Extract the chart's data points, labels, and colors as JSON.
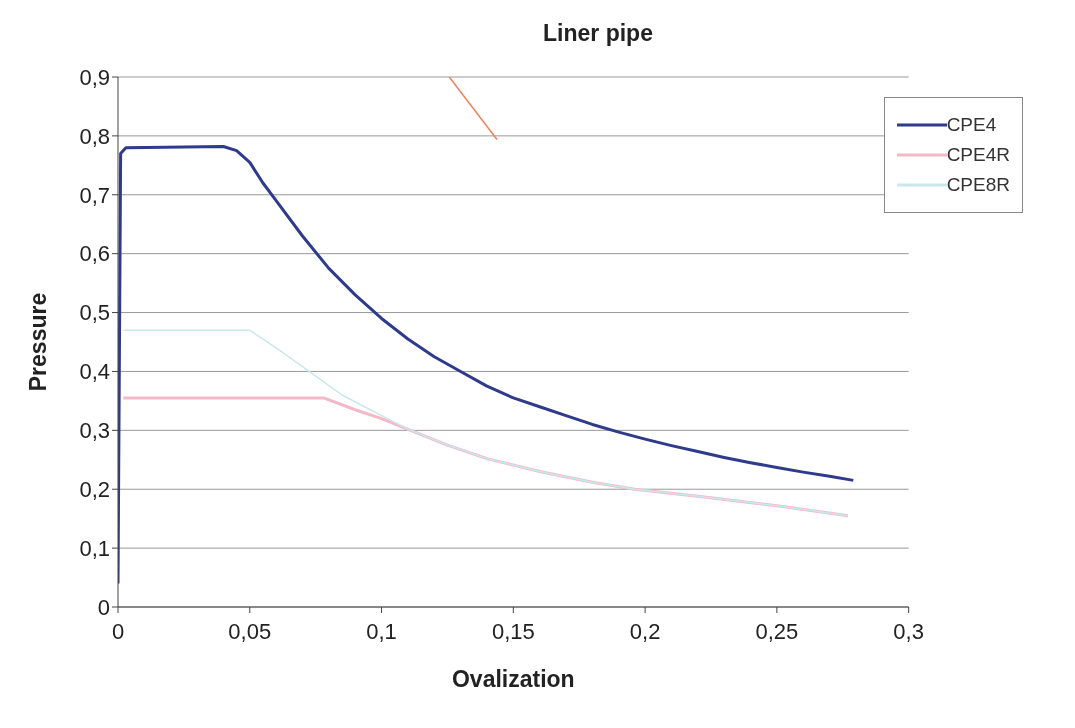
{
  "chart_data": {
    "type": "line",
    "title": "Liner pipe",
    "xlabel": "Ovalization",
    "ylabel": "Pressure",
    "xlim": [
      0,
      0.3
    ],
    "xticks": [
      0,
      {
        "value": 0.05,
        "label": "0,05"
      },
      {
        "value": 0.1,
        "label": "0,1"
      },
      {
        "value": 0.15,
        "label": "0,15"
      },
      {
        "value": 0.2,
        "label": "0,2"
      },
      {
        "value": 0.25,
        "label": "0,25"
      },
      {
        "value": 0.3,
        "label": "0,3"
      }
    ],
    "ylim": [
      0,
      0.9
    ],
    "yticks": [
      0,
      {
        "value": 0.1,
        "label": "0,1"
      },
      {
        "value": 0.2,
        "label": "0,2"
      },
      {
        "value": 0.3,
        "label": "0,3"
      },
      {
        "value": 0.4,
        "label": "0,4"
      },
      {
        "value": 0.5,
        "label": "0,5"
      },
      {
        "value": 0.6,
        "label": "0,6"
      },
      {
        "value": 0.7,
        "label": "0,7"
      },
      {
        "value": 0.8,
        "label": "0,8"
      },
      {
        "value": 0.9,
        "label": "0,9"
      }
    ],
    "grid": "y",
    "legend": "top right",
    "marker": "none",
    "series": [
      {
        "name": "CPE4",
        "color": "#2e3a8c",
        "x": [
          0,
          0.001,
          0.003,
          0.04,
          0.045,
          0.05,
          0.055,
          0.06,
          0.07,
          0.08,
          0.09,
          0.1,
          0.11,
          0.12,
          0.13,
          0.14,
          0.15,
          0.16,
          0.17,
          0.18,
          0.19,
          0.2,
          0.21,
          0.22,
          0.23,
          0.24,
          0.25,
          0.26,
          0.27,
          0.279
        ],
        "values": [
          0.04,
          0.77,
          0.78,
          0.782,
          0.775,
          0.755,
          0.72,
          0.69,
          0.63,
          0.575,
          0.53,
          0.49,
          0.455,
          0.425,
          0.4,
          0.375,
          0.355,
          0.34,
          0.325,
          0.31,
          0.297,
          0.285,
          0.274,
          0.264,
          0.254,
          0.245,
          0.237,
          0.229,
          0.222,
          0.215
        ]
      },
      {
        "name": "CPE4R",
        "color": "#f4b8c8",
        "x": [
          0.002,
          0.078,
          0.09,
          0.1,
          0.111,
          0.125,
          0.14,
          0.16,
          0.18,
          0.196,
          0.22,
          0.25,
          0.277
        ],
        "values": [
          0.355,
          0.355,
          0.335,
          0.32,
          0.3,
          0.275,
          0.252,
          0.23,
          0.212,
          0.2,
          0.188,
          0.172,
          0.155
        ]
      },
      {
        "name": "CPE8R",
        "color": "#c8e8ec",
        "x": [
          0.002,
          0.05,
          0.06,
          0.0725,
          0.085,
          0.1,
          0.111,
          0.125,
          0.14,
          0.16,
          0.18,
          0.196,
          0.22,
          0.25,
          0.277
        ],
        "values": [
          0.47,
          0.47,
          0.44,
          0.4,
          0.36,
          0.325,
          0.3,
          0.275,
          0.252,
          0.23,
          0.212,
          0.2,
          0.188,
          0.172,
          0.155
        ]
      },
      {
        "color": "#f08060",
        "x": [
          0.1257,
          0.1438
        ],
        "values": [
          0.9,
          0.794
        ]
      }
    ]
  }
}
